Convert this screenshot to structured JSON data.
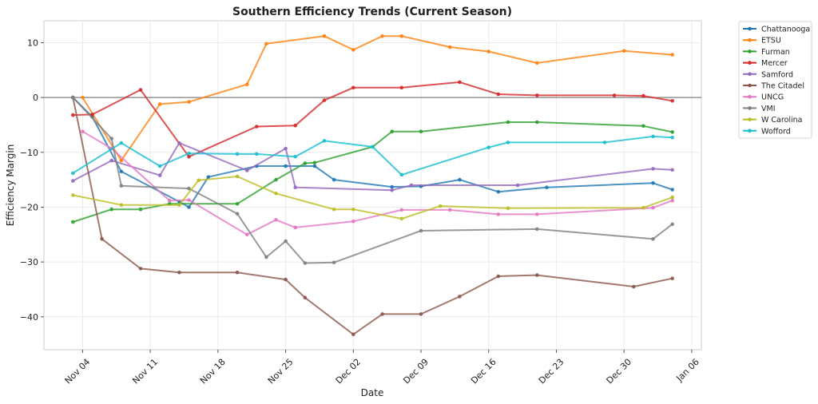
{
  "chart_data": {
    "type": "line",
    "title": "Southern Efficiency Trends (Current Season)",
    "xlabel": "Date",
    "ylabel": "Efficiency Margin",
    "xlim": [
      "2023-10-31",
      "2024-01-07"
    ],
    "ylim": [
      -46,
      14
    ],
    "x_ticks": [
      {
        "date": "2023-11-04",
        "label": "Nov 04"
      },
      {
        "date": "2023-11-11",
        "label": "Nov 11"
      },
      {
        "date": "2023-11-18",
        "label": "Nov 18"
      },
      {
        "date": "2023-11-25",
        "label": "Nov 25"
      },
      {
        "date": "2023-12-02",
        "label": "Dec 02"
      },
      {
        "date": "2023-12-09",
        "label": "Dec 09"
      },
      {
        "date": "2023-12-16",
        "label": "Dec 16"
      },
      {
        "date": "2023-12-23",
        "label": "Dec 23"
      },
      {
        "date": "2023-12-30",
        "label": "Dec 30"
      },
      {
        "date": "2024-01-06",
        "label": "Jan 06"
      }
    ],
    "y_ticks": [
      10,
      0,
      -10,
      -20,
      -30,
      -40
    ],
    "reference_line": 0,
    "grid": true,
    "legend_position": "outside top-right",
    "series": [
      {
        "name": "Chattanooga",
        "color": "#1f77b4",
        "points": [
          [
            "2023-11-03",
            0
          ],
          [
            "2023-11-05",
            -3.5
          ],
          [
            "2023-11-08",
            -13.5
          ],
          [
            "2023-11-14",
            -19
          ],
          [
            "2023-11-15",
            -20
          ],
          [
            "2023-11-17",
            -14.5
          ],
          [
            "2023-11-22",
            -12.5
          ],
          [
            "2023-11-25",
            -12.5
          ],
          [
            "2023-11-28",
            -12.5
          ],
          [
            "2023-11-30",
            -15
          ],
          [
            "2023-12-06",
            -16.3
          ],
          [
            "2023-12-09",
            -16.2
          ],
          [
            "2023-12-13",
            -15
          ],
          [
            "2023-12-17",
            -17.2
          ],
          [
            "2023-12-22",
            -16.4
          ],
          [
            "2024-01-02",
            -15.6
          ],
          [
            "2024-01-04",
            -16.8
          ]
        ]
      },
      {
        "name": "ETSU",
        "color": "#ff7f0e",
        "points": [
          [
            "2023-11-04",
            0
          ],
          [
            "2023-11-08",
            -11.5
          ],
          [
            "2023-11-12",
            -1.2
          ],
          [
            "2023-11-15",
            -0.8
          ],
          [
            "2023-11-21",
            2.4
          ],
          [
            "2023-11-23",
            9.8
          ],
          [
            "2023-11-29",
            11.2
          ],
          [
            "2023-12-02",
            8.7
          ],
          [
            "2023-12-05",
            11.2
          ],
          [
            "2023-12-07",
            11.2
          ],
          [
            "2023-12-12",
            9.2
          ],
          [
            "2023-12-16",
            8.4
          ],
          [
            "2023-12-21",
            6.3
          ],
          [
            "2023-12-30",
            8.5
          ],
          [
            "2024-01-04",
            7.8
          ]
        ]
      },
      {
        "name": "Furman",
        "color": "#2ca02c",
        "points": [
          [
            "2023-11-03",
            -22.7
          ],
          [
            "2023-11-07",
            -20.4
          ],
          [
            "2023-11-10",
            -20.4
          ],
          [
            "2023-11-13",
            -19.4
          ],
          [
            "2023-11-20",
            -19.4
          ],
          [
            "2023-11-24",
            -15
          ],
          [
            "2023-11-27",
            -12
          ],
          [
            "2023-11-28",
            -11.9
          ],
          [
            "2023-12-04",
            -9
          ],
          [
            "2023-12-06",
            -6.2
          ],
          [
            "2023-12-09",
            -6.2
          ],
          [
            "2023-12-18",
            -4.5
          ],
          [
            "2023-12-21",
            -4.5
          ],
          [
            "2024-01-01",
            -5.2
          ],
          [
            "2024-01-04",
            -6.3
          ]
        ]
      },
      {
        "name": "Mercer",
        "color": "#d62728",
        "points": [
          [
            "2023-11-03",
            -3.2
          ],
          [
            "2023-11-05",
            -3.1
          ],
          [
            "2023-11-10",
            1.4
          ],
          [
            "2023-11-15",
            -10.8
          ],
          [
            "2023-11-22",
            -5.3
          ],
          [
            "2023-11-26",
            -5.1
          ],
          [
            "2023-11-29",
            -0.5
          ],
          [
            "2023-12-02",
            1.8
          ],
          [
            "2023-12-07",
            1.8
          ],
          [
            "2023-12-13",
            2.8
          ],
          [
            "2023-12-17",
            0.6
          ],
          [
            "2023-12-21",
            0.4
          ],
          [
            "2023-12-29",
            0.4
          ],
          [
            "2024-01-01",
            0.3
          ],
          [
            "2024-01-04",
            -0.6
          ]
        ]
      },
      {
        "name": "Samford",
        "color": "#9467bd",
        "points": [
          [
            "2023-11-03",
            -15.2
          ],
          [
            "2023-11-07",
            -11.5
          ],
          [
            "2023-11-12",
            -14.2
          ],
          [
            "2023-11-14",
            -8.3
          ],
          [
            "2023-11-21",
            -13.3
          ],
          [
            "2023-11-25",
            -9.3
          ],
          [
            "2023-11-26",
            -16.4
          ],
          [
            "2023-12-06",
            -16.9
          ],
          [
            "2023-12-08",
            -16
          ],
          [
            "2023-12-19",
            -16
          ],
          [
            "2024-01-02",
            -13
          ],
          [
            "2024-01-04",
            -13.2
          ]
        ]
      },
      {
        "name": "The Citadel",
        "color": "#8c564b",
        "points": [
          [
            "2023-11-03",
            0
          ],
          [
            "2023-11-06",
            -25.8
          ],
          [
            "2023-11-10",
            -31.2
          ],
          [
            "2023-11-14",
            -31.9
          ],
          [
            "2023-11-20",
            -31.9
          ],
          [
            "2023-11-25",
            -33.2
          ],
          [
            "2023-11-27",
            -36.5
          ],
          [
            "2023-12-02",
            -43.2
          ],
          [
            "2023-12-05",
            -39.5
          ],
          [
            "2023-12-09",
            -39.5
          ],
          [
            "2023-12-13",
            -36.3
          ],
          [
            "2023-12-17",
            -32.6
          ],
          [
            "2023-12-21",
            -32.4
          ],
          [
            "2023-12-31",
            -34.5
          ],
          [
            "2024-01-04",
            -33
          ]
        ]
      },
      {
        "name": "UNCG",
        "color": "#e377c2",
        "points": [
          [
            "2023-11-04",
            -6.2
          ],
          [
            "2023-11-07",
            -9.3
          ],
          [
            "2023-11-13",
            -18.8
          ],
          [
            "2023-11-15",
            -18.7
          ],
          [
            "2023-11-21",
            -25
          ],
          [
            "2023-11-24",
            -22.3
          ],
          [
            "2023-11-26",
            -23.7
          ],
          [
            "2023-11-26",
            -23.7
          ],
          [
            "2023-12-02",
            -22.6
          ],
          [
            "2023-12-07",
            -20.5
          ],
          [
            "2023-12-12",
            -20.5
          ],
          [
            "2023-12-17",
            -21.3
          ],
          [
            "2023-12-21",
            -21.3
          ],
          [
            "2024-01-02",
            -20.1
          ],
          [
            "2024-01-04",
            -18.8
          ]
        ]
      },
      {
        "name": "VMI",
        "color": "#7f7f7f",
        "points": [
          [
            "2023-11-03",
            0
          ],
          [
            "2023-11-07",
            -7.5
          ],
          [
            "2023-11-08",
            -16.1
          ],
          [
            "2023-11-15",
            -16.6
          ],
          [
            "2023-11-20",
            -21.2
          ],
          [
            "2023-11-23",
            -29.1
          ],
          [
            "2023-11-25",
            -26.2
          ],
          [
            "2023-11-27",
            -30.2
          ],
          [
            "2023-11-30",
            -30.1
          ],
          [
            "2023-12-09",
            -24.3
          ],
          [
            "2023-12-21",
            -24
          ],
          [
            "2024-01-02",
            -25.8
          ],
          [
            "2024-01-04",
            -23.1
          ]
        ]
      },
      {
        "name": "W Carolina",
        "color": "#bcbd22",
        "points": [
          [
            "2023-11-03",
            -17.8
          ],
          [
            "2023-11-08",
            -19.6
          ],
          [
            "2023-11-14",
            -19.6
          ],
          [
            "2023-11-16",
            -15.1
          ],
          [
            "2023-11-20",
            -14.4
          ],
          [
            "2023-11-24",
            -17.5
          ],
          [
            "2023-11-30",
            -20.4
          ],
          [
            "2023-12-02",
            -20.4
          ],
          [
            "2023-12-07",
            -22.1
          ],
          [
            "2023-12-11",
            -19.8
          ],
          [
            "2023-12-18",
            -20.2
          ],
          [
            "2024-01-01",
            -20.1
          ],
          [
            "2024-01-04",
            -18.2
          ]
        ]
      },
      {
        "name": "Wofford",
        "color": "#17becf",
        "points": [
          [
            "2023-11-03",
            -13.8
          ],
          [
            "2023-11-08",
            -8.3
          ],
          [
            "2023-11-12",
            -12.5
          ],
          [
            "2023-11-15",
            -10.2
          ],
          [
            "2023-11-20",
            -10.3
          ],
          [
            "2023-11-22",
            -10.3
          ],
          [
            "2023-11-26",
            -10.8
          ],
          [
            "2023-11-29",
            -7.9
          ],
          [
            "2023-12-04",
            -9
          ],
          [
            "2023-12-07",
            -14.1
          ],
          [
            "2023-12-16",
            -9.1
          ],
          [
            "2023-12-18",
            -8.2
          ],
          [
            "2023-12-28",
            -8.2
          ],
          [
            "2024-01-02",
            -7.1
          ],
          [
            "2024-01-04",
            -7.3
          ]
        ]
      }
    ]
  }
}
